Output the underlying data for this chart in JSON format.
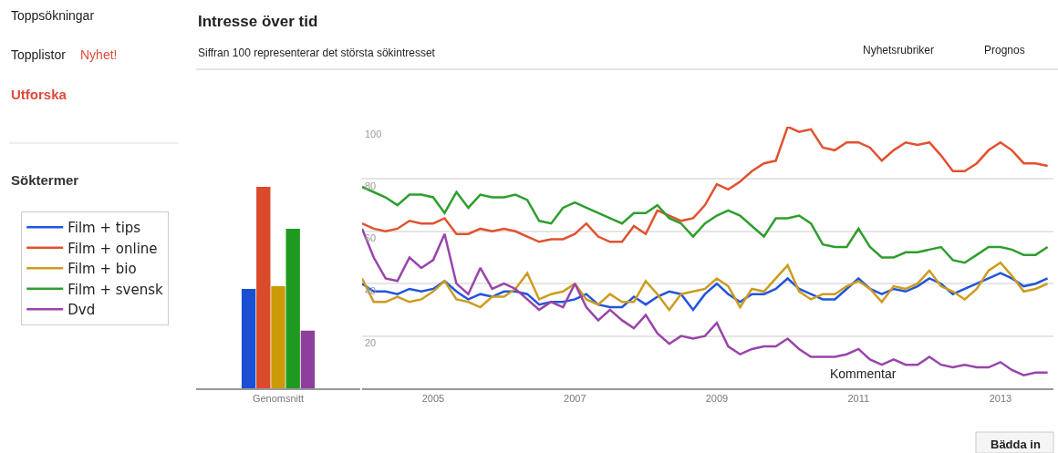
{
  "chart_data": [
    {
      "type": "bar",
      "title": "Intresse över tid",
      "subtitle": "Siffran 100 representerar det största sökintresset",
      "annotations": [
        "Toppsökningar",
        "Topplistor",
        "Nyhet!",
        "Utforska",
        "Söktermer",
        "Nyhetsrubriker",
        "Prognos",
        "Bädda in"
      ],
      "categories": [
        "Genomsnitt"
      ],
      "ylim": [
        0,
        100
      ],
      "tick_labels": "x",
      "legend": false,
      "series": [
        {
          "color": "#1a4fd4",
          "values": [
            38
          ]
        },
        {
          "color": "#dc4a2c",
          "values": [
            77
          ]
        },
        {
          "color": "#cc9a06",
          "values": [
            39
          ]
        },
        {
          "color": "#1e9a1e",
          "values": [
            61
          ]
        },
        {
          "color": "#8e3f9c",
          "values": [
            22
          ]
        }
      ]
    },
    {
      "type": "line",
      "ylim": [
        0,
        100
      ],
      "yticks": [
        20,
        40,
        60,
        80,
        100
      ],
      "xlim": [
        "2004-01",
        "2013-10"
      ],
      "xticks": [
        "2005",
        "2007",
        "2009",
        "2011",
        "2013"
      ],
      "grid": "y",
      "legend": "left",
      "marker": "none",
      "line_style": "solid",
      "annotations": [
        "Kommentar"
      ],
      "x": [
        "2004-01",
        "2004-03",
        "2004-05",
        "2004-07",
        "2004-09",
        "2004-11",
        "2005-01",
        "2005-03",
        "2005-05",
        "2005-07",
        "2005-09",
        "2005-11",
        "2006-01",
        "2006-03",
        "2006-05",
        "2006-07",
        "2006-09",
        "2006-11",
        "2007-01",
        "2007-03",
        "2007-05",
        "2007-07",
        "2007-09",
        "2007-11",
        "2008-01",
        "2008-03",
        "2008-05",
        "2008-07",
        "2008-09",
        "2008-11",
        "2009-01",
        "2009-03",
        "2009-05",
        "2009-07",
        "2009-09",
        "2009-11",
        "2010-01",
        "2010-03",
        "2010-05",
        "2010-07",
        "2010-09",
        "2010-11",
        "2011-01",
        "2011-03",
        "2011-05",
        "2011-07",
        "2011-09",
        "2011-11",
        "2012-01",
        "2012-03",
        "2012-05",
        "2012-07",
        "2012-09",
        "2012-11",
        "2013-01",
        "2013-03",
        "2013-05",
        "2013-07",
        "2013-09"
      ],
      "series": [
        {
          "name": "Film + tips",
          "color": "#2255dd",
          "values": [
            40,
            37,
            37,
            36,
            38,
            37,
            38,
            41,
            37,
            34,
            36,
            35,
            37,
            37,
            36,
            32,
            33,
            33,
            34,
            36,
            32,
            31,
            31,
            35,
            32,
            35,
            37,
            36,
            30,
            36,
            40,
            36,
            33,
            36,
            36,
            38,
            42,
            38,
            36,
            34,
            34,
            38,
            42,
            38,
            36,
            38,
            37,
            39,
            42,
            40,
            36,
            38,
            40,
            42,
            44,
            42,
            39,
            40,
            42
          ]
        },
        {
          "name": "Film + online",
          "color": "#e0522f",
          "values": [
            63,
            61,
            60,
            61,
            64,
            63,
            63,
            65,
            59,
            59,
            61,
            60,
            61,
            60,
            58,
            56,
            57,
            57,
            59,
            63,
            58,
            56,
            56,
            62,
            59,
            68,
            66,
            64,
            65,
            70,
            78,
            76,
            79,
            83,
            86,
            87,
            100,
            98,
            99,
            92,
            91,
            94,
            94,
            92,
            87,
            91,
            94,
            93,
            94,
            89,
            83,
            83,
            86,
            91,
            94,
            91,
            86,
            86,
            85
          ]
        },
        {
          "name": "Film + bio",
          "color": "#cc9c1e",
          "values": [
            42,
            33,
            33,
            35,
            33,
            34,
            37,
            41,
            34,
            33,
            31,
            35,
            35,
            38,
            44,
            34,
            36,
            37,
            40,
            34,
            32,
            36,
            33,
            33,
            41,
            36,
            30,
            36,
            37,
            38,
            42,
            39,
            31,
            38,
            37,
            42,
            47,
            37,
            34,
            36,
            36,
            39,
            41,
            38,
            33,
            39,
            38,
            40,
            45,
            39,
            37,
            34,
            38,
            45,
            48,
            43,
            37,
            38,
            40
          ]
        },
        {
          "name": "Film + svensk",
          "color": "#2e9e2e",
          "values": [
            77,
            75,
            73,
            70,
            74,
            74,
            73,
            67,
            75,
            69,
            74,
            73,
            73,
            74,
            72,
            64,
            63,
            69,
            71,
            69,
            67,
            65,
            63,
            67,
            67,
            70,
            65,
            63,
            58,
            63,
            66,
            68,
            66,
            62,
            58,
            65,
            65,
            66,
            63,
            55,
            54,
            54,
            61,
            54,
            50,
            50,
            52,
            52,
            53,
            54,
            49,
            48,
            51,
            54,
            54,
            53,
            51,
            51,
            54
          ]
        },
        {
          "name": "Dvd",
          "color": "#9944aa",
          "values": [
            61,
            50,
            42,
            41,
            50,
            46,
            49,
            59,
            40,
            36,
            46,
            38,
            40,
            38,
            34,
            30,
            33,
            31,
            40,
            31,
            26,
            30,
            26,
            23,
            28,
            21,
            17,
            20,
            19,
            20,
            25,
            16,
            13,
            15,
            16,
            16,
            19,
            15,
            12,
            12,
            12,
            13,
            15,
            11,
            9,
            11,
            9,
            9,
            12,
            9,
            8,
            9,
            8,
            8,
            10,
            7,
            5,
            6,
            6
          ]
        }
      ]
    }
  ]
}
